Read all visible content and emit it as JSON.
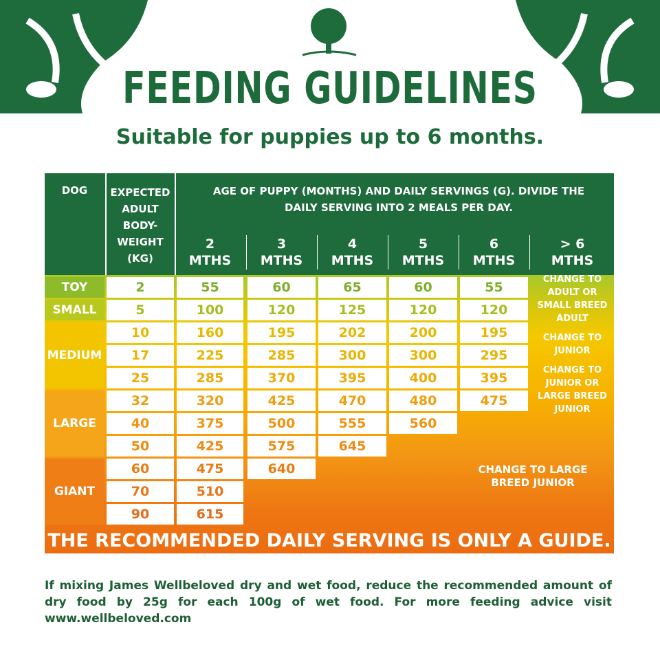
{
  "header": {
    "title": "FEEDING GUIDELINES",
    "subtitle": "Suitable for puppies up to 6 months."
  },
  "table": {
    "headers": {
      "dog": "DOG",
      "weight": "EXPECTED ADULT BODY-WEIGHT (KG)",
      "age": "AGE OF PUPPY (MONTHS) AND DAILY SERVINGS (G). DIVIDE THE DAILY SERVING INTO 2 MEALS PER DAY.",
      "months": [
        "2 MTHS",
        "3 MTHS",
        "4 MTHS",
        "5 MTHS",
        "6 MTHS",
        "> 6 MTHS"
      ]
    },
    "sizes": [
      {
        "label": "TOY",
        "first_row": 0,
        "last_row": 0
      },
      {
        "label": "SMALL",
        "first_row": 1,
        "last_row": 1
      },
      {
        "label": "MEDIUM",
        "first_row": 2,
        "last_row": 4
      },
      {
        "label": "LARGE",
        "first_row": 5,
        "last_row": 7
      },
      {
        "label": "GIANT",
        "first_row": 8,
        "last_row": 10
      }
    ],
    "rows": [
      {
        "weight": 2,
        "servings": [
          55,
          60,
          65,
          60,
          55
        ]
      },
      {
        "weight": 5,
        "servings": [
          100,
          120,
          125,
          120,
          120
        ]
      },
      {
        "weight": 10,
        "servings": [
          160,
          195,
          202,
          200,
          195
        ]
      },
      {
        "weight": 17,
        "servings": [
          225,
          285,
          300,
          300,
          295
        ]
      },
      {
        "weight": 25,
        "servings": [
          285,
          370,
          395,
          400,
          395
        ]
      },
      {
        "weight": 32,
        "servings": [
          320,
          425,
          470,
          480,
          475
        ]
      },
      {
        "weight": 40,
        "servings": [
          375,
          500,
          555,
          560
        ]
      },
      {
        "weight": 50,
        "servings": [
          425,
          575,
          645
        ]
      },
      {
        "weight": 60,
        "servings": [
          475,
          640
        ]
      },
      {
        "weight": 70,
        "servings": [
          510
        ]
      },
      {
        "weight": 90,
        "servings": [
          615
        ]
      }
    ],
    "notes": [
      "CHANGE TO ADULT OR SMALL BREED ADULT",
      "CHANGE TO JUNIOR",
      "CHANGE TO JUNIOR OR LARGE BREED JUNIOR",
      "CHANGE TO LARGE BREED JUNIOR"
    ],
    "banner": "THE RECOMMENDED DAILY SERVING IS ONLY A GUIDE."
  },
  "footnote": "If mixing James Wellbeloved dry and wet food, reduce the recommended amount of dry food by 25g for each 100g of wet food. For more feeding advice visit www.wellbeloved.com"
}
